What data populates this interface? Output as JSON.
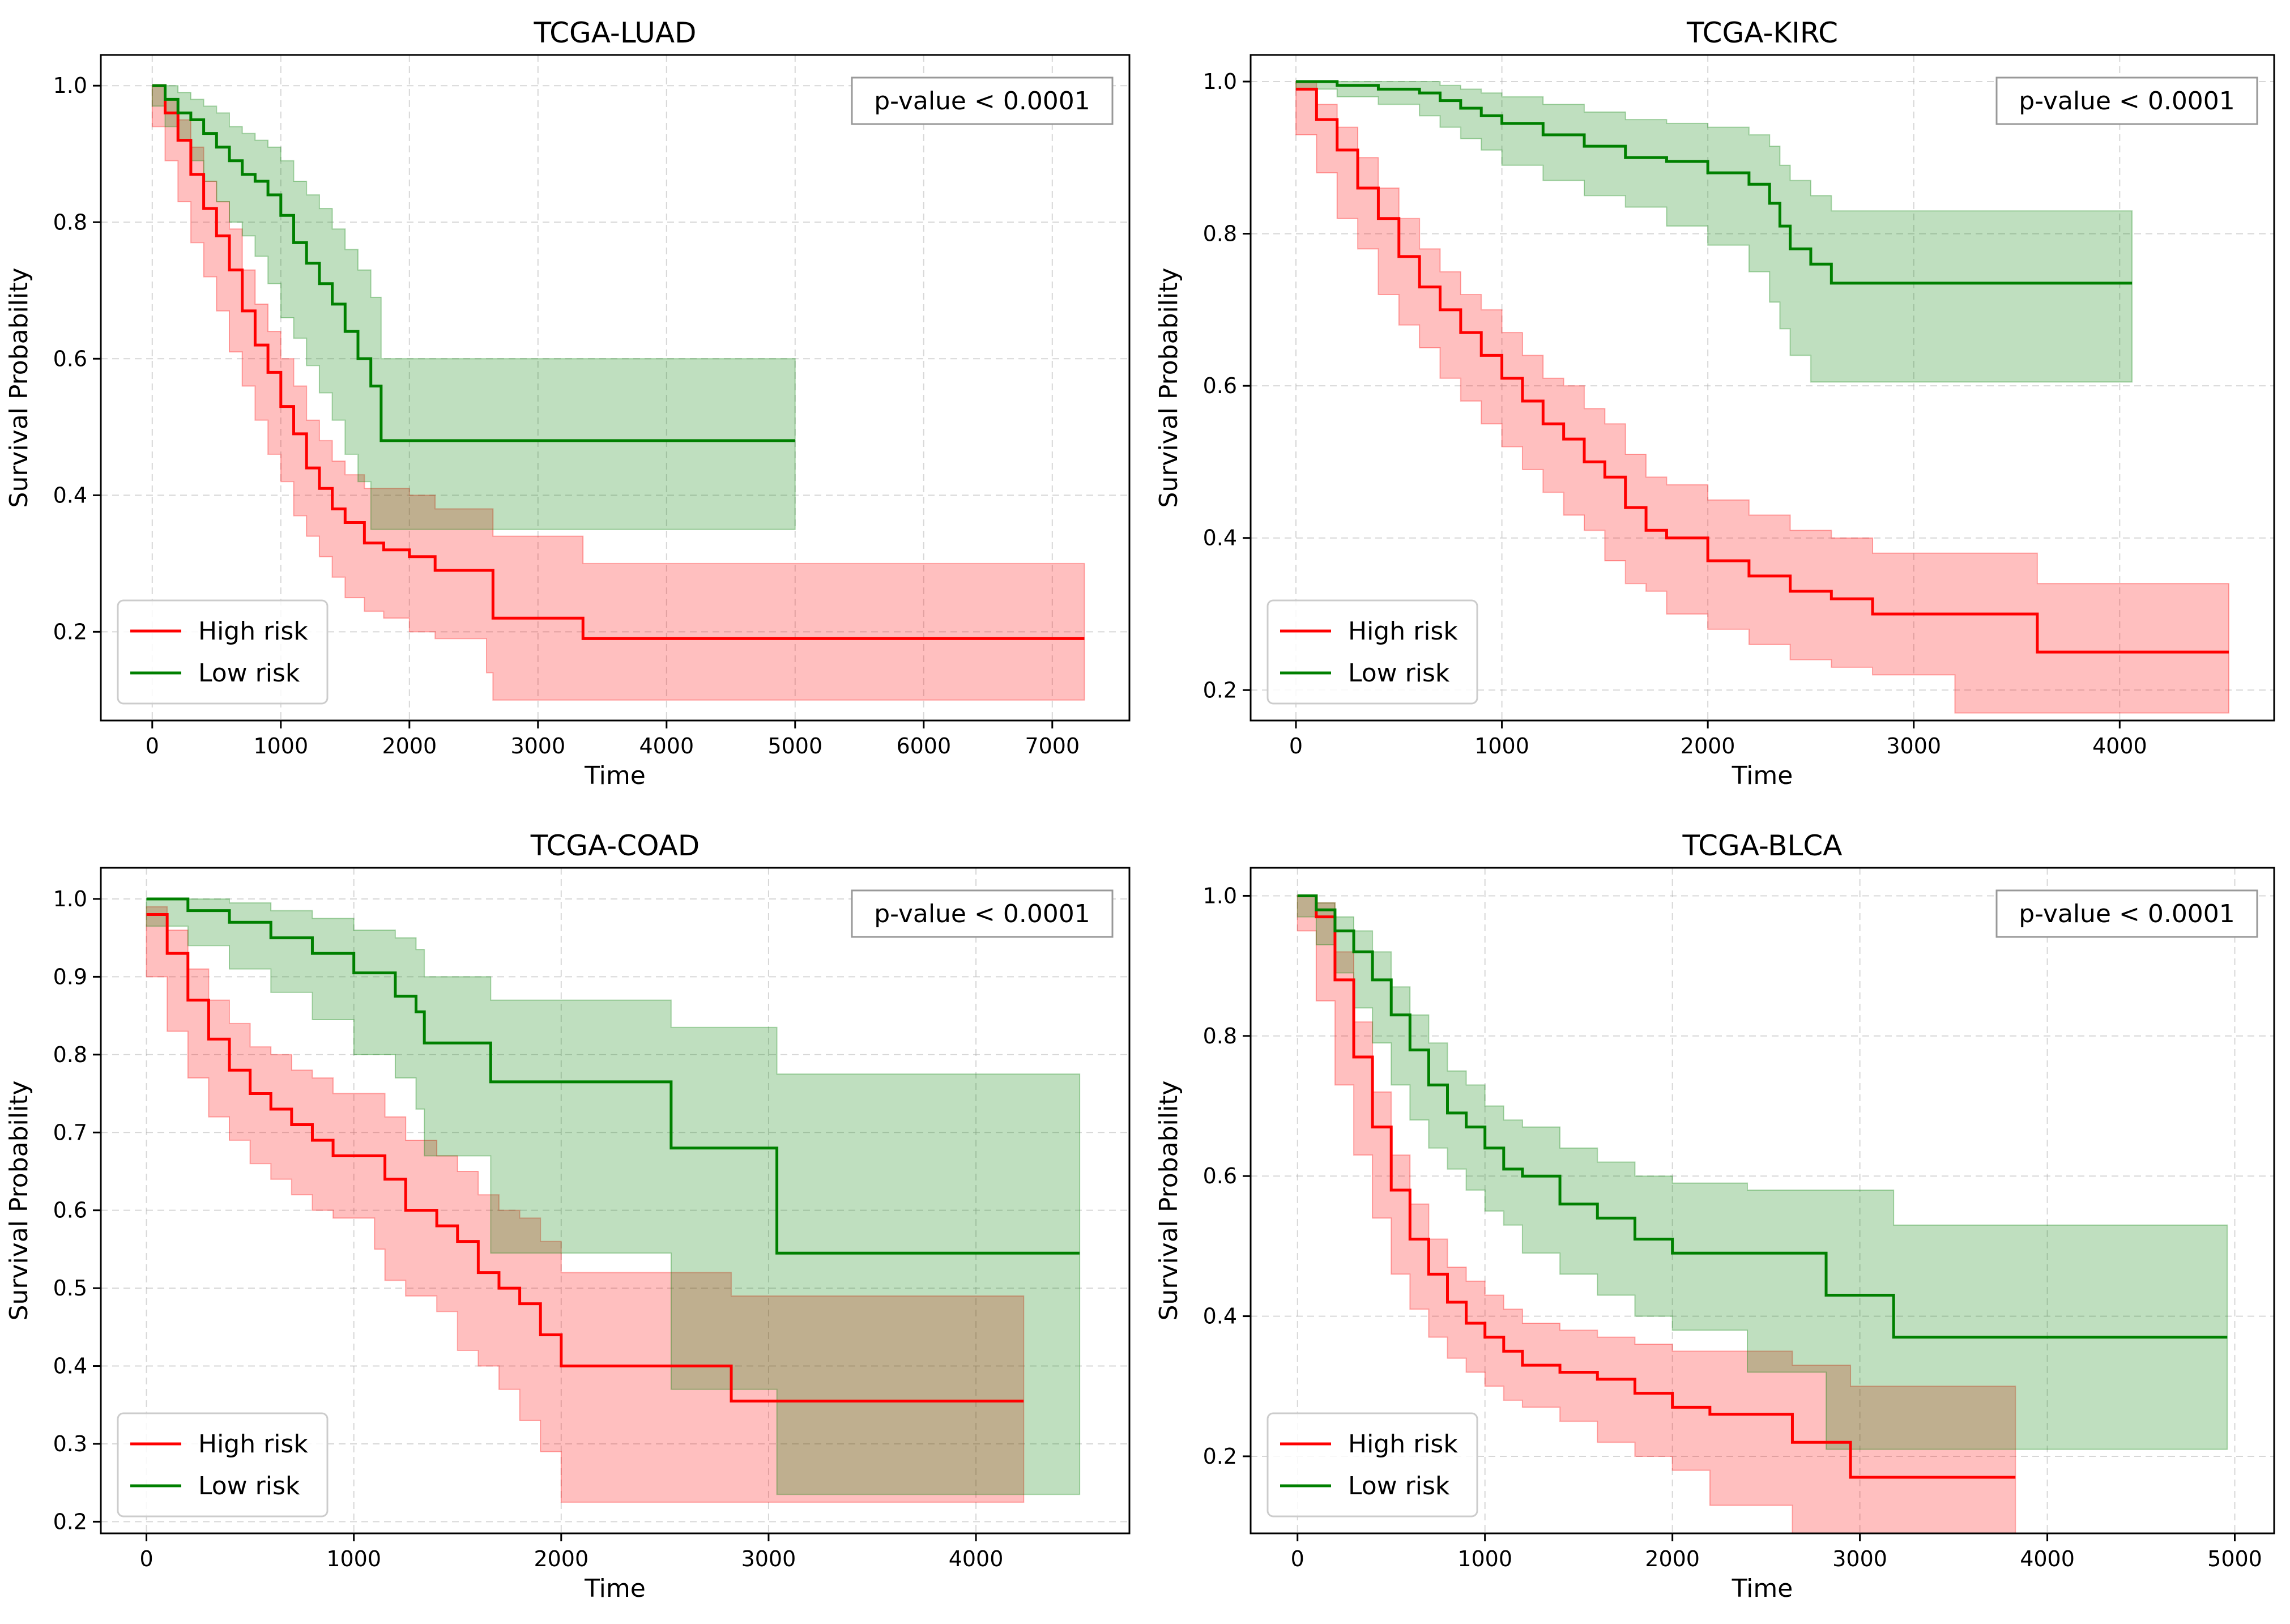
{
  "colors": {
    "high_risk": "#ff0000",
    "low_risk": "#008000",
    "high_band": "#ff0000",
    "low_band": "#008000"
  },
  "chart_data": [
    {
      "type": "line",
      "title": "TCGA-LUAD",
      "xlabel": "Time",
      "ylabel": "Survival Probability",
      "xlim": [
        -400,
        7600
      ],
      "ylim": [
        0.07,
        1.045
      ],
      "xticks": [
        0,
        1000,
        2000,
        3000,
        4000,
        5000,
        6000,
        7000
      ],
      "xtick_labels": [
        "0",
        "1000",
        "2000",
        "3000",
        "4000",
        "5000",
        "6000",
        "7000"
      ],
      "yticks": [
        0.2,
        0.4,
        0.6,
        0.8,
        1.0
      ],
      "ytick_labels": [
        "0.2",
        "0.4",
        "0.6",
        "0.8",
        "1.0"
      ],
      "annotation": "p-value < 0.0001",
      "legend": [
        "High risk",
        "Low risk"
      ],
      "legend_loc": "lower left",
      "series": [
        {
          "name": "High risk",
          "x": [
            0,
            100,
            200,
            300,
            400,
            500,
            600,
            700,
            800,
            900,
            1000,
            1100,
            1200,
            1300,
            1400,
            1500,
            1650,
            1800,
            2000,
            2200,
            2600,
            2650,
            3350,
            7250
          ],
          "y": [
            1.0,
            0.96,
            0.92,
            0.87,
            0.82,
            0.78,
            0.73,
            0.67,
            0.62,
            0.58,
            0.53,
            0.49,
            0.44,
            0.41,
            0.38,
            0.36,
            0.33,
            0.32,
            0.31,
            0.29,
            0.29,
            0.22,
            0.19,
            0.19
          ],
          "lower": [
            1.0,
            0.94,
            0.89,
            0.83,
            0.77,
            0.72,
            0.67,
            0.61,
            0.56,
            0.51,
            0.46,
            0.42,
            0.37,
            0.34,
            0.31,
            0.28,
            0.25,
            0.23,
            0.22,
            0.2,
            0.19,
            0.14,
            0.1,
            0.1
          ],
          "upper": [
            1.0,
            0.98,
            0.95,
            0.91,
            0.86,
            0.83,
            0.79,
            0.73,
            0.68,
            0.64,
            0.6,
            0.56,
            0.51,
            0.48,
            0.45,
            0.43,
            0.41,
            0.41,
            0.4,
            0.38,
            0.38,
            0.34,
            0.3,
            0.3
          ]
        },
        {
          "name": "Low risk",
          "x": [
            0,
            100,
            200,
            300,
            400,
            500,
            600,
            700,
            800,
            900,
            1000,
            1100,
            1200,
            1300,
            1400,
            1500,
            1600,
            1700,
            1780,
            5000
          ],
          "y": [
            1.0,
            0.98,
            0.96,
            0.95,
            0.93,
            0.91,
            0.89,
            0.87,
            0.86,
            0.84,
            0.81,
            0.77,
            0.74,
            0.71,
            0.68,
            0.64,
            0.6,
            0.56,
            0.48,
            0.48
          ],
          "lower": [
            1.0,
            0.97,
            0.94,
            0.92,
            0.89,
            0.86,
            0.83,
            0.8,
            0.78,
            0.75,
            0.71,
            0.66,
            0.63,
            0.59,
            0.55,
            0.51,
            0.46,
            0.42,
            0.35,
            0.35
          ],
          "upper": [
            1.0,
            1.0,
            0.99,
            0.98,
            0.97,
            0.96,
            0.94,
            0.93,
            0.92,
            0.91,
            0.89,
            0.86,
            0.84,
            0.82,
            0.79,
            0.76,
            0.73,
            0.69,
            0.6,
            0.6
          ]
        }
      ]
    },
    {
      "type": "line",
      "title": "TCGA-KIRC",
      "xlabel": "Time",
      "ylabel": "Survival Probability",
      "xlim": [
        -220,
        4750
      ],
      "ylim": [
        0.16,
        1.035
      ],
      "xticks": [
        0,
        1000,
        2000,
        3000,
        4000
      ],
      "xtick_labels": [
        "0",
        "1000",
        "2000",
        "3000",
        "4000"
      ],
      "yticks": [
        0.2,
        0.4,
        0.6,
        0.8,
        1.0
      ],
      "ytick_labels": [
        "0.2",
        "0.4",
        "0.6",
        "0.8",
        "1.0"
      ],
      "annotation": "p-value < 0.0001",
      "legend": [
        "High risk",
        "Low risk"
      ],
      "legend_loc": "lower left",
      "series": [
        {
          "name": "High risk",
          "x": [
            0,
            100,
            200,
            300,
            400,
            500,
            600,
            700,
            800,
            900,
            1000,
            1100,
            1200,
            1300,
            1400,
            1500,
            1600,
            1700,
            1800,
            2000,
            2200,
            2400,
            2600,
            2800,
            3200,
            3600,
            4530
          ],
          "y": [
            0.99,
            0.95,
            0.91,
            0.86,
            0.82,
            0.77,
            0.73,
            0.7,
            0.67,
            0.64,
            0.61,
            0.58,
            0.55,
            0.53,
            0.5,
            0.48,
            0.44,
            0.41,
            0.4,
            0.37,
            0.35,
            0.33,
            0.32,
            0.3,
            0.3,
            0.25,
            0.25
          ],
          "lower": [
            0.99,
            0.93,
            0.88,
            0.82,
            0.78,
            0.72,
            0.68,
            0.65,
            0.61,
            0.58,
            0.55,
            0.52,
            0.49,
            0.46,
            0.43,
            0.41,
            0.37,
            0.34,
            0.33,
            0.3,
            0.28,
            0.26,
            0.24,
            0.23,
            0.22,
            0.17,
            0.17
          ],
          "upper": [
            1.0,
            0.97,
            0.94,
            0.9,
            0.86,
            0.82,
            0.78,
            0.75,
            0.72,
            0.7,
            0.67,
            0.64,
            0.61,
            0.6,
            0.57,
            0.55,
            0.51,
            0.48,
            0.47,
            0.45,
            0.43,
            0.41,
            0.4,
            0.38,
            0.38,
            0.34,
            0.34
          ]
        },
        {
          "name": "Low risk",
          "x": [
            0,
            200,
            400,
            600,
            700,
            800,
            900,
            1000,
            1200,
            1400,
            1600,
            1800,
            2000,
            2200,
            2300,
            2350,
            2400,
            2500,
            2600,
            4060
          ],
          "y": [
            1.0,
            0.995,
            0.99,
            0.985,
            0.975,
            0.965,
            0.955,
            0.945,
            0.93,
            0.915,
            0.9,
            0.895,
            0.88,
            0.865,
            0.84,
            0.81,
            0.78,
            0.76,
            0.735,
            0.735
          ],
          "lower": [
            1.0,
            0.99,
            0.98,
            0.97,
            0.955,
            0.94,
            0.925,
            0.91,
            0.89,
            0.87,
            0.85,
            0.835,
            0.81,
            0.785,
            0.75,
            0.71,
            0.675,
            0.64,
            0.605,
            0.605
          ],
          "upper": [
            1.0,
            1.0,
            1.0,
            1.0,
            0.995,
            0.99,
            0.985,
            0.98,
            0.97,
            0.96,
            0.95,
            0.945,
            0.94,
            0.93,
            0.915,
            0.89,
            0.87,
            0.85,
            0.83,
            0.83
          ]
        }
      ]
    },
    {
      "type": "line",
      "title": "TCGA-COAD",
      "xlabel": "Time",
      "ylabel": "Survival Probability",
      "xlim": [
        -220,
        4740
      ],
      "ylim": [
        0.185,
        1.04
      ],
      "xticks": [
        0,
        1000,
        2000,
        3000,
        4000
      ],
      "xtick_labels": [
        "0",
        "1000",
        "2000",
        "3000",
        "4000"
      ],
      "yticks": [
        0.2,
        0.3,
        0.4,
        0.5,
        0.6,
        0.7,
        0.8,
        0.9,
        1.0
      ],
      "ytick_labels": [
        "0.2",
        "0.3",
        "0.4",
        "0.5",
        "0.6",
        "0.7",
        "0.8",
        "0.9",
        "1.0"
      ],
      "annotation": "p-value < 0.0001",
      "legend": [
        "High risk",
        "Low risk"
      ],
      "legend_loc": "lower left",
      "series": [
        {
          "name": "High risk",
          "x": [
            0,
            100,
            200,
            300,
            400,
            500,
            600,
            700,
            800,
            900,
            1000,
            1100,
            1150,
            1250,
            1400,
            1500,
            1600,
            1700,
            1800,
            1900,
            2000,
            2820,
            4230
          ],
          "y": [
            0.98,
            0.93,
            0.87,
            0.82,
            0.78,
            0.75,
            0.73,
            0.71,
            0.69,
            0.67,
            0.67,
            0.67,
            0.64,
            0.6,
            0.58,
            0.56,
            0.52,
            0.5,
            0.48,
            0.44,
            0.4,
            0.355,
            0.355
          ],
          "lower": [
            0.97,
            0.9,
            0.83,
            0.77,
            0.72,
            0.69,
            0.66,
            0.64,
            0.62,
            0.6,
            0.59,
            0.59,
            0.55,
            0.51,
            0.49,
            0.47,
            0.42,
            0.4,
            0.37,
            0.33,
            0.29,
            0.225,
            0.225
          ],
          "upper": [
            0.99,
            0.96,
            0.91,
            0.87,
            0.84,
            0.81,
            0.8,
            0.78,
            0.77,
            0.75,
            0.75,
            0.75,
            0.72,
            0.69,
            0.67,
            0.65,
            0.62,
            0.6,
            0.59,
            0.56,
            0.52,
            0.49,
            0.49
          ]
        },
        {
          "name": "Low risk",
          "x": [
            0,
            200,
            400,
            600,
            800,
            1000,
            1200,
            1300,
            1340,
            1660,
            2530,
            3040,
            4500
          ],
          "y": [
            1.0,
            0.985,
            0.97,
            0.95,
            0.93,
            0.905,
            0.875,
            0.855,
            0.815,
            0.765,
            0.68,
            0.545,
            0.545
          ],
          "lower": [
            0.99,
            0.965,
            0.94,
            0.91,
            0.88,
            0.845,
            0.8,
            0.77,
            0.73,
            0.67,
            0.545,
            0.37,
            0.235
          ],
          "upper": [
            1.0,
            1.0,
            0.995,
            0.985,
            0.975,
            0.96,
            0.95,
            0.935,
            0.9,
            0.87,
            0.835,
            0.775,
            0.775
          ]
        }
      ]
    },
    {
      "type": "line",
      "title": "TCGA-BLCA",
      "xlabel": "Time",
      "ylabel": "Survival Probability",
      "xlim": [
        -250,
        5210
      ],
      "ylim": [
        0.09,
        1.04
      ],
      "xticks": [
        0,
        1000,
        2000,
        3000,
        4000,
        5000
      ],
      "xtick_labels": [
        "0",
        "1000",
        "2000",
        "3000",
        "4000",
        "5000"
      ],
      "yticks": [
        0.2,
        0.4,
        0.6,
        0.8,
        1.0
      ],
      "ytick_labels": [
        "0.2",
        "0.4",
        "0.6",
        "0.8",
        "1.0"
      ],
      "annotation": "p-value < 0.0001",
      "legend": [
        "High risk",
        "Low risk"
      ],
      "legend_loc": "lower left",
      "series": [
        {
          "name": "High risk",
          "x": [
            0,
            100,
            200,
            300,
            400,
            500,
            600,
            700,
            800,
            900,
            1000,
            1100,
            1200,
            1400,
            1600,
            1800,
            2000,
            2200,
            2640,
            2950,
            3830
          ],
          "y": [
            1.0,
            0.97,
            0.88,
            0.77,
            0.67,
            0.58,
            0.51,
            0.46,
            0.42,
            0.39,
            0.37,
            0.35,
            0.33,
            0.32,
            0.31,
            0.29,
            0.27,
            0.26,
            0.22,
            0.17,
            0.17
          ],
          "lower": [
            0.99,
            0.95,
            0.85,
            0.73,
            0.63,
            0.54,
            0.46,
            0.41,
            0.37,
            0.34,
            0.32,
            0.3,
            0.28,
            0.27,
            0.25,
            0.22,
            0.2,
            0.18,
            0.13,
            0.09,
            0.09
          ],
          "upper": [
            1.0,
            0.99,
            0.92,
            0.82,
            0.72,
            0.63,
            0.56,
            0.51,
            0.47,
            0.45,
            0.43,
            0.41,
            0.39,
            0.38,
            0.37,
            0.36,
            0.35,
            0.35,
            0.33,
            0.3,
            0.3
          ]
        },
        {
          "name": "Low risk",
          "x": [
            0,
            100,
            200,
            300,
            400,
            500,
            600,
            700,
            800,
            900,
            1000,
            1100,
            1200,
            1400,
            1600,
            1800,
            2000,
            2400,
            2820,
            3180,
            4960
          ],
          "y": [
            1.0,
            0.98,
            0.95,
            0.92,
            0.88,
            0.83,
            0.78,
            0.73,
            0.69,
            0.67,
            0.64,
            0.61,
            0.6,
            0.56,
            0.54,
            0.51,
            0.49,
            0.49,
            0.43,
            0.37,
            0.37
          ],
          "lower": [
            0.99,
            0.97,
            0.93,
            0.89,
            0.84,
            0.79,
            0.73,
            0.68,
            0.64,
            0.61,
            0.58,
            0.55,
            0.53,
            0.49,
            0.46,
            0.43,
            0.4,
            0.38,
            0.32,
            0.21,
            0.21
          ],
          "upper": [
            1.0,
            0.99,
            0.97,
            0.95,
            0.92,
            0.87,
            0.83,
            0.79,
            0.75,
            0.73,
            0.7,
            0.68,
            0.67,
            0.64,
            0.62,
            0.6,
            0.59,
            0.58,
            0.58,
            0.53,
            0.53
          ]
        }
      ]
    }
  ]
}
